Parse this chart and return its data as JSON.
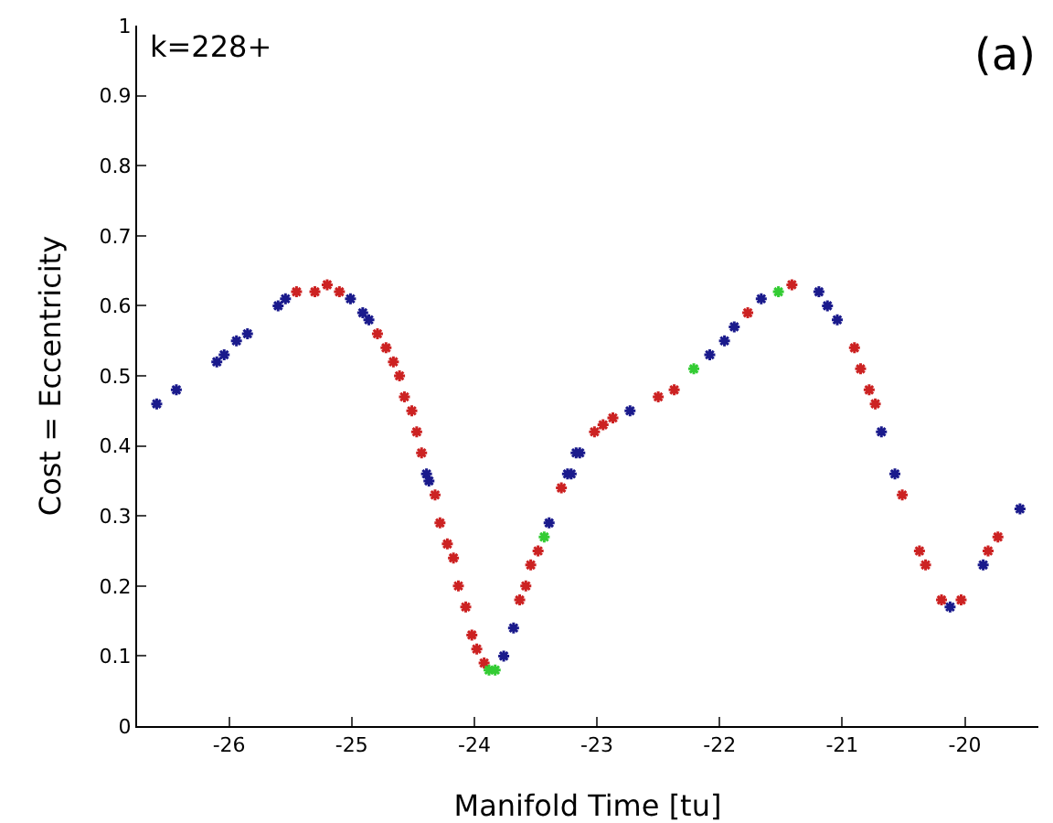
{
  "chart_data": {
    "type": "scatter",
    "xlabel": "Manifold Time [tu]",
    "ylabel": "Cost = Eccentricity",
    "annotations": [
      "k=228+",
      "(a)"
    ],
    "xlim": [
      -26.75,
      -19.4
    ],
    "xticks": [
      -26,
      -25,
      -24,
      -23,
      -22,
      -21,
      -20
    ],
    "ylim": [
      0,
      1
    ],
    "yticks": [
      0,
      0.1,
      0.2,
      0.3,
      0.4,
      0.5,
      0.6,
      0.7,
      0.8,
      0.9,
      1
    ],
    "grid": false,
    "marker": "cross",
    "series": [
      {
        "color": "#1a1a8c",
        "x": [
          -26.59,
          -26.43,
          -26.1,
          -26.04,
          -25.94,
          -25.85,
          -25.6,
          -25.54,
          -25.01,
          -24.91,
          -24.86,
          -24.39,
          -24.37,
          -23.76,
          -23.68,
          -23.39,
          -23.24,
          -23.17,
          -23.21,
          -23.14,
          -22.73,
          -22.08,
          -21.96,
          -21.88,
          -21.66,
          -21.19,
          -21.12,
          -21.04,
          -20.68,
          -20.57,
          -20.12,
          -19.85,
          -19.55
        ],
        "values": [
          0.46,
          0.48,
          0.52,
          0.53,
          0.55,
          0.56,
          0.6,
          0.61,
          0.61,
          0.59,
          0.58,
          0.36,
          0.35,
          0.1,
          0.14,
          0.29,
          0.36,
          0.39,
          0.36,
          0.39,
          0.45,
          0.53,
          0.55,
          0.57,
          0.61,
          0.62,
          0.6,
          0.58,
          0.42,
          0.36,
          0.17,
          0.23,
          0.31
        ]
      },
      {
        "color": "#cc2222",
        "x": [
          -25.45,
          -25.3,
          -25.2,
          -25.1,
          -24.79,
          -24.72,
          -24.66,
          -24.61,
          -24.57,
          -24.51,
          -24.47,
          -24.43,
          -24.32,
          -24.28,
          -24.22,
          -24.17,
          -24.13,
          -24.07,
          -24.02,
          -23.98,
          -23.92,
          -23.63,
          -23.58,
          -23.54,
          -23.48,
          -23.29,
          -23.02,
          -22.95,
          -22.87,
          -22.5,
          -22.37,
          -21.77,
          -21.41,
          -20.9,
          -20.85,
          -20.78,
          -20.73,
          -20.51,
          -20.37,
          -20.32,
          -20.19,
          -20.03,
          -19.81,
          -19.73
        ],
        "values": [
          0.62,
          0.62,
          0.63,
          0.62,
          0.56,
          0.54,
          0.52,
          0.5,
          0.47,
          0.45,
          0.42,
          0.39,
          0.33,
          0.29,
          0.26,
          0.24,
          0.2,
          0.17,
          0.13,
          0.11,
          0.09,
          0.18,
          0.2,
          0.23,
          0.25,
          0.34,
          0.42,
          0.43,
          0.44,
          0.47,
          0.48,
          0.59,
          0.63,
          0.54,
          0.51,
          0.48,
          0.46,
          0.33,
          0.25,
          0.23,
          0.18,
          0.18,
          0.25,
          0.27
        ]
      },
      {
        "color": "#33cc33",
        "x": [
          -23.88,
          -23.83,
          -23.43,
          -22.21,
          -21.52
        ],
        "values": [
          0.08,
          0.08,
          0.27,
          0.51,
          0.62
        ]
      }
    ]
  }
}
